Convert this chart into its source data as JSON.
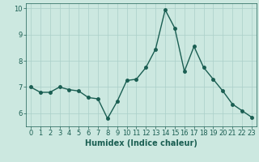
{
  "x": [
    0,
    1,
    2,
    3,
    4,
    5,
    6,
    7,
    8,
    9,
    10,
    11,
    12,
    13,
    14,
    15,
    16,
    17,
    18,
    19,
    20,
    21,
    22,
    23
  ],
  "y": [
    7.0,
    6.8,
    6.8,
    7.0,
    6.9,
    6.85,
    6.6,
    6.55,
    5.8,
    6.45,
    7.25,
    7.3,
    7.75,
    8.45,
    9.95,
    9.25,
    7.6,
    8.55,
    7.75,
    7.3,
    6.85,
    6.35,
    6.1,
    5.85
  ],
  "line_color": "#1a5e52",
  "marker": "o",
  "markersize": 2.5,
  "linewidth": 1.0,
  "xlabel": "Humidex (Indice chaleur)",
  "ylim": [
    5.5,
    10.2
  ],
  "yticks": [
    6,
    7,
    8,
    9,
    10
  ],
  "xticks": [
    0,
    1,
    2,
    3,
    4,
    5,
    6,
    7,
    8,
    9,
    10,
    11,
    12,
    13,
    14,
    15,
    16,
    17,
    18,
    19,
    20,
    21,
    22,
    23
  ],
  "bg_color": "#cce8e0",
  "grid_color": "#aacfc8",
  "tick_fontsize": 6,
  "xlabel_fontsize": 7
}
